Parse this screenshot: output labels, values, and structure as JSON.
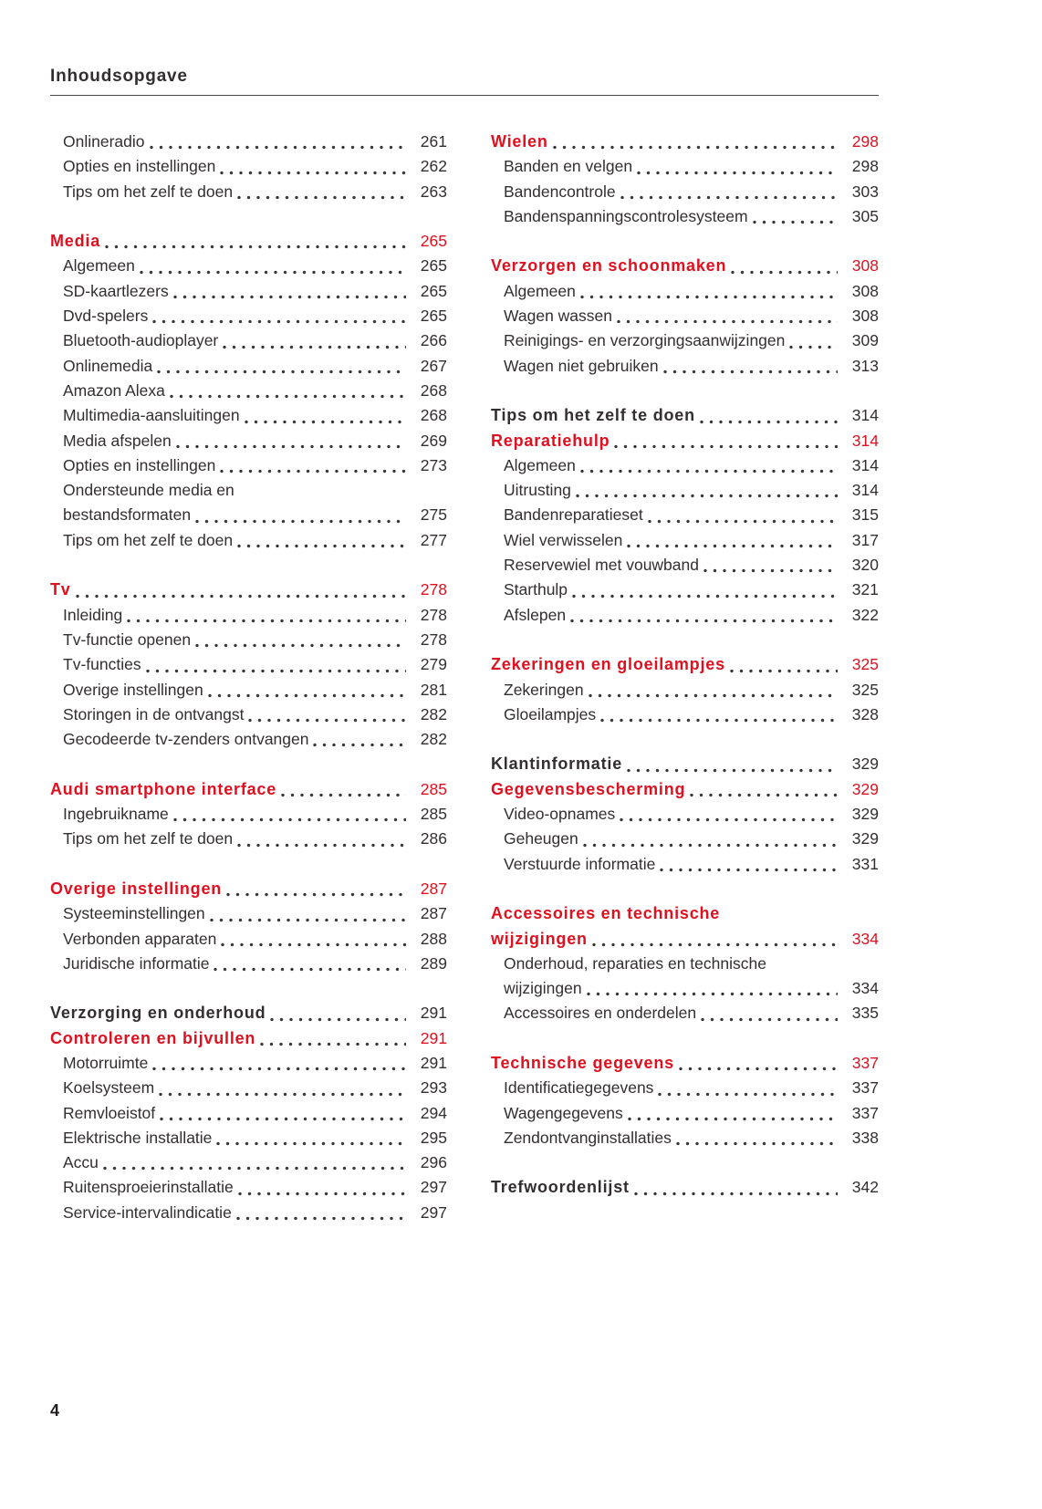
{
  "page": {
    "header_title": "Inhoudsopgave",
    "page_number": "4",
    "accent_color": "#e0101f",
    "ink_color": "#332e30"
  },
  "toc": {
    "left_column": [
      {
        "items": [
          {
            "style": "entry",
            "label": "Onlineradio",
            "page": "261"
          },
          {
            "style": "entry",
            "label": "Opties en instellingen",
            "page": "262"
          },
          {
            "style": "entry",
            "label": "Tips om het zelf te doen",
            "page": "263"
          }
        ]
      },
      {
        "items": [
          {
            "style": "h-red",
            "label": "Media",
            "page": "265"
          },
          {
            "style": "entry",
            "label": "Algemeen",
            "page": "265"
          },
          {
            "style": "entry",
            "label": "SD-kaartlezers",
            "page": "265"
          },
          {
            "style": "entry",
            "label": "Dvd-spelers",
            "page": "265"
          },
          {
            "style": "entry",
            "label": "Bluetooth-audioplayer",
            "page": "266"
          },
          {
            "style": "entry",
            "label": "Onlinemedia",
            "page": "267"
          },
          {
            "style": "entry",
            "label": "Amazon Alexa",
            "page": "268"
          },
          {
            "style": "entry",
            "label": "Multimedia-aansluitingen",
            "page": "268"
          },
          {
            "style": "entry",
            "label": "Media afspelen",
            "page": "269"
          },
          {
            "style": "entry",
            "label": "Opties en instellingen",
            "page": "273"
          },
          {
            "style": "entry",
            "label": [
              "Ondersteunde media en",
              "bestandsformaten"
            ],
            "page": "275"
          },
          {
            "style": "entry",
            "label": "Tips om het zelf te doen",
            "page": "277"
          }
        ]
      },
      {
        "items": [
          {
            "style": "h-red",
            "label": "Tv",
            "page": "278"
          },
          {
            "style": "entry",
            "label": "Inleiding",
            "page": "278"
          },
          {
            "style": "entry",
            "label": "Tv-functie openen",
            "page": "278"
          },
          {
            "style": "entry",
            "label": "Tv-functies",
            "page": "279"
          },
          {
            "style": "entry",
            "label": "Overige instellingen",
            "page": "281"
          },
          {
            "style": "entry",
            "label": "Storingen in de ontvangst",
            "page": "282"
          },
          {
            "style": "entry",
            "label": "Gecodeerde tv-zenders ontvangen",
            "page": "282"
          }
        ]
      },
      {
        "items": [
          {
            "style": "h-red",
            "label": "Audi smartphone interface",
            "page": "285"
          },
          {
            "style": "entry",
            "label": "Ingebruikname",
            "page": "285"
          },
          {
            "style": "entry",
            "label": "Tips om het zelf te doen",
            "page": "286"
          }
        ]
      },
      {
        "items": [
          {
            "style": "h-red",
            "label": "Overige instellingen",
            "page": "287"
          },
          {
            "style": "entry",
            "label": "Systeeminstellingen",
            "page": "287"
          },
          {
            "style": "entry",
            "label": "Verbonden apparaten",
            "page": "288"
          },
          {
            "style": "entry",
            "label": "Juridische informatie",
            "page": "289"
          }
        ]
      },
      {
        "items": [
          {
            "style": "h-black",
            "label": "Verzorging en onderhoud",
            "page": "291"
          },
          {
            "style": "h-red",
            "label": "Controleren en bijvullen",
            "page": "291"
          },
          {
            "style": "entry",
            "label": "Motorruimte",
            "page": "291"
          },
          {
            "style": "entry",
            "label": "Koelsysteem",
            "page": "293"
          },
          {
            "style": "entry",
            "label": "Remvloeistof",
            "page": "294"
          },
          {
            "style": "entry",
            "label": "Elektrische installatie",
            "page": "295"
          },
          {
            "style": "entry",
            "label": "Accu",
            "page": "296"
          },
          {
            "style": "entry",
            "label": "Ruitensproeierinstallatie",
            "page": "297"
          },
          {
            "style": "entry",
            "label": "Service-intervalindicatie",
            "page": "297"
          }
        ]
      }
    ],
    "right_column": [
      {
        "items": [
          {
            "style": "h-red",
            "label": "Wielen",
            "page": "298"
          },
          {
            "style": "entry",
            "label": "Banden en velgen",
            "page": "298"
          },
          {
            "style": "entry",
            "label": "Bandencontrole",
            "page": "303"
          },
          {
            "style": "entry",
            "label": "Bandenspanningscontrolesysteem",
            "page": "305"
          }
        ]
      },
      {
        "items": [
          {
            "style": "h-red",
            "label": "Verzorgen en schoonmaken",
            "page": "308"
          },
          {
            "style": "entry",
            "label": "Algemeen",
            "page": "308"
          },
          {
            "style": "entry",
            "label": "Wagen wassen",
            "page": "308"
          },
          {
            "style": "entry",
            "label": "Reinigings- en verzorgingsaanwijzingen",
            "page": "309"
          },
          {
            "style": "entry",
            "label": "Wagen niet gebruiken",
            "page": "313"
          }
        ]
      },
      {
        "items": [
          {
            "style": "h-black",
            "label": "Tips om het zelf te doen",
            "page": "314"
          },
          {
            "style": "h-red",
            "label": "Reparatiehulp",
            "page": "314"
          },
          {
            "style": "entry",
            "label": "Algemeen",
            "page": "314"
          },
          {
            "style": "entry",
            "label": "Uitrusting",
            "page": "314"
          },
          {
            "style": "entry",
            "label": "Bandenreparatieset",
            "page": "315"
          },
          {
            "style": "entry",
            "label": "Wiel verwisselen",
            "page": "317"
          },
          {
            "style": "entry",
            "label": "Reservewiel met vouwband",
            "page": "320"
          },
          {
            "style": "entry",
            "label": "Starthulp",
            "page": "321"
          },
          {
            "style": "entry",
            "label": "Afslepen",
            "page": "322"
          }
        ]
      },
      {
        "items": [
          {
            "style": "h-red",
            "label": "Zekeringen en gloeilampjes",
            "page": "325"
          },
          {
            "style": "entry",
            "label": "Zekeringen",
            "page": "325"
          },
          {
            "style": "entry",
            "label": "Gloeilampjes",
            "page": "328"
          }
        ]
      },
      {
        "items": [
          {
            "style": "h-black",
            "label": "Klantinformatie",
            "page": "329"
          },
          {
            "style": "h-red",
            "label": "Gegevensbescherming",
            "page": "329"
          },
          {
            "style": "entry",
            "label": "Video-opnames",
            "page": "329"
          },
          {
            "style": "entry",
            "label": "Geheugen",
            "page": "329"
          },
          {
            "style": "entry",
            "label": "Verstuurde informatie",
            "page": "331"
          }
        ]
      },
      {
        "items": [
          {
            "style": "h-red",
            "label": [
              "Accessoires en technische",
              "wijzigingen"
            ],
            "page": "334"
          },
          {
            "style": "entry",
            "label": [
              "Onderhoud, reparaties en technische",
              "wijzigingen"
            ],
            "page": "334"
          },
          {
            "style": "entry",
            "label": "Accessoires en onderdelen",
            "page": "335"
          }
        ]
      },
      {
        "items": [
          {
            "style": "h-red",
            "label": "Technische gegevens",
            "page": "337"
          },
          {
            "style": "entry",
            "label": "Identificatiegegevens",
            "page": "337"
          },
          {
            "style": "entry",
            "label": "Wagengegevens",
            "page": "337"
          },
          {
            "style": "entry",
            "label": "Zendontvanginstallaties",
            "page": "338"
          }
        ]
      },
      {
        "items": [
          {
            "style": "h-black",
            "label": "Trefwoordenlijst",
            "page": "342"
          }
        ]
      }
    ]
  }
}
